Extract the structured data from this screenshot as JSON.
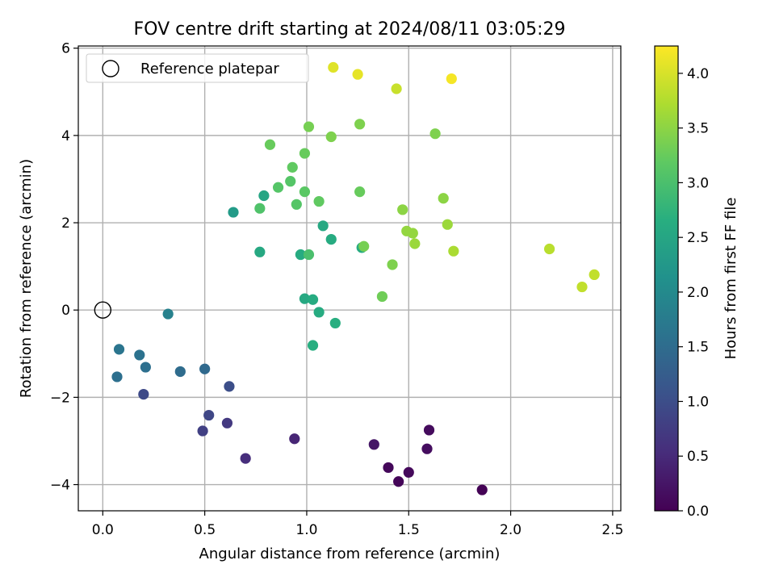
{
  "chart_data": {
    "type": "scatter",
    "title": "FOV centre drift starting at 2024/08/11 03:05:29",
    "xlabel": "Angular distance from reference (arcmin)",
    "ylabel": "Rotation from reference (arcmin)",
    "xlim": [
      -0.12,
      2.54
    ],
    "ylim": [
      -4.6,
      6.05
    ],
    "xticks": [
      0.0,
      0.5,
      1.0,
      1.5,
      2.0,
      2.5
    ],
    "xtick_labels": [
      "0.0",
      "0.5",
      "1.0",
      "1.5",
      "2.0",
      "2.5"
    ],
    "yticks": [
      -4,
      -2,
      0,
      2,
      4,
      6
    ],
    "ytick_labels": [
      "−4",
      "−2",
      "0",
      "2",
      "4",
      "6"
    ],
    "grid": true,
    "legend": {
      "position": "top-left",
      "entries": [
        "Reference platepar"
      ]
    },
    "reference_point": {
      "x": 0.0,
      "y": 0.0
    },
    "colorbar": {
      "label": "Hours from first FF file",
      "colormap": "viridis",
      "range": [
        0.0,
        4.25
      ],
      "ticks": [
        0.0,
        0.5,
        1.0,
        1.5,
        2.0,
        2.5,
        3.0,
        3.5,
        4.0
      ],
      "tick_labels": [
        "0.0",
        "0.5",
        "1.0",
        "1.5",
        "2.0",
        "2.5",
        "3.0",
        "3.5",
        "4.0"
      ]
    },
    "points": [
      {
        "x": 1.86,
        "y": -4.12,
        "c": 0.02
      },
      {
        "x": 1.45,
        "y": -3.93,
        "c": 0.05
      },
      {
        "x": 1.4,
        "y": -3.61,
        "c": 0.08
      },
      {
        "x": 1.5,
        "y": -3.72,
        "c": 0.1
      },
      {
        "x": 1.6,
        "y": -2.75,
        "c": 0.12
      },
      {
        "x": 1.59,
        "y": -3.18,
        "c": 0.15
      },
      {
        "x": 1.33,
        "y": -3.08,
        "c": 0.25
      },
      {
        "x": 0.94,
        "y": -2.95,
        "c": 0.45
      },
      {
        "x": 0.7,
        "y": -3.4,
        "c": 0.55
      },
      {
        "x": 0.61,
        "y": -2.59,
        "c": 0.7
      },
      {
        "x": 0.49,
        "y": -2.77,
        "c": 0.8
      },
      {
        "x": 0.52,
        "y": -2.41,
        "c": 0.9
      },
      {
        "x": 0.2,
        "y": -1.93,
        "c": 0.95
      },
      {
        "x": 0.62,
        "y": -1.75,
        "c": 1.0
      },
      {
        "x": 0.5,
        "y": -1.35,
        "c": 1.45
      },
      {
        "x": 0.38,
        "y": -1.41,
        "c": 1.5
      },
      {
        "x": 0.21,
        "y": -1.31,
        "c": 1.55
      },
      {
        "x": 0.07,
        "y": -1.53,
        "c": 1.55
      },
      {
        "x": 0.18,
        "y": -1.03,
        "c": 1.6
      },
      {
        "x": 0.08,
        "y": -0.9,
        "c": 1.65
      },
      {
        "x": 0.32,
        "y": -0.09,
        "c": 1.85
      },
      {
        "x": 0.64,
        "y": 2.24,
        "c": 2.3
      },
      {
        "x": 0.79,
        "y": 2.62,
        "c": 2.5
      },
      {
        "x": 0.77,
        "y": 1.33,
        "c": 2.55
      },
      {
        "x": 0.97,
        "y": 1.27,
        "c": 2.6
      },
      {
        "x": 1.08,
        "y": 1.93,
        "c": 2.55
      },
      {
        "x": 1.12,
        "y": 1.62,
        "c": 2.6
      },
      {
        "x": 1.27,
        "y": 1.43,
        "c": 2.6
      },
      {
        "x": 0.99,
        "y": 0.26,
        "c": 2.55
      },
      {
        "x": 1.03,
        "y": 0.24,
        "c": 2.6
      },
      {
        "x": 1.06,
        "y": -0.05,
        "c": 2.6
      },
      {
        "x": 1.14,
        "y": -0.3,
        "c": 2.65
      },
      {
        "x": 1.03,
        "y": -0.81,
        "c": 2.65
      },
      {
        "x": 1.01,
        "y": 1.27,
        "c": 3.0
      },
      {
        "x": 0.77,
        "y": 2.33,
        "c": 3.05
      },
      {
        "x": 0.86,
        "y": 2.81,
        "c": 3.1
      },
      {
        "x": 0.92,
        "y": 2.95,
        "c": 3.1
      },
      {
        "x": 0.95,
        "y": 2.42,
        "c": 3.1
      },
      {
        "x": 0.99,
        "y": 2.71,
        "c": 3.15
      },
      {
        "x": 1.06,
        "y": 2.49,
        "c": 3.2
      },
      {
        "x": 0.93,
        "y": 3.27,
        "c": 3.2
      },
      {
        "x": 0.82,
        "y": 3.79,
        "c": 3.25
      },
      {
        "x": 0.99,
        "y": 3.59,
        "c": 3.25
      },
      {
        "x": 1.01,
        "y": 4.2,
        "c": 3.35
      },
      {
        "x": 1.12,
        "y": 3.97,
        "c": 3.4
      },
      {
        "x": 1.26,
        "y": 4.26,
        "c": 3.4
      },
      {
        "x": 1.26,
        "y": 2.71,
        "c": 3.25
      },
      {
        "x": 1.28,
        "y": 1.46,
        "c": 3.35
      },
      {
        "x": 1.37,
        "y": 0.31,
        "c": 3.3
      },
      {
        "x": 1.42,
        "y": 1.04,
        "c": 3.4
      },
      {
        "x": 1.47,
        "y": 2.3,
        "c": 3.5
      },
      {
        "x": 1.49,
        "y": 1.81,
        "c": 3.55
      },
      {
        "x": 1.52,
        "y": 1.76,
        "c": 3.55
      },
      {
        "x": 1.53,
        "y": 1.52,
        "c": 3.6
      },
      {
        "x": 1.63,
        "y": 4.04,
        "c": 3.4
      },
      {
        "x": 1.67,
        "y": 2.56,
        "c": 3.5
      },
      {
        "x": 1.69,
        "y": 1.96,
        "c": 3.6
      },
      {
        "x": 1.72,
        "y": 1.35,
        "c": 3.7
      },
      {
        "x": 2.19,
        "y": 1.4,
        "c": 3.8
      },
      {
        "x": 2.35,
        "y": 0.53,
        "c": 3.85
      },
      {
        "x": 2.41,
        "y": 0.81,
        "c": 3.85
      },
      {
        "x": 1.44,
        "y": 5.07,
        "c": 3.9
      },
      {
        "x": 1.13,
        "y": 5.56,
        "c": 4.05
      },
      {
        "x": 1.25,
        "y": 5.4,
        "c": 4.1
      },
      {
        "x": 1.71,
        "y": 5.3,
        "c": 4.2
      }
    ]
  }
}
